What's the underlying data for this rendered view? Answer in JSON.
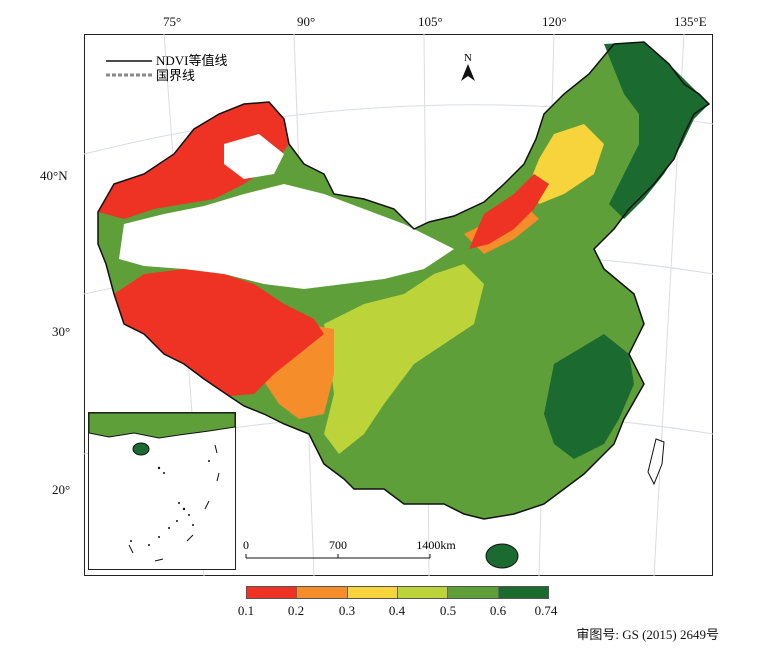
{
  "map": {
    "lon_ticks": [
      "75°",
      "90°",
      "105°",
      "120°",
      "135°E"
    ],
    "lat_ticks": [
      "40°N",
      "30°",
      "20°"
    ],
    "north_label": "N",
    "legend": {
      "isoline": "NDVI等值线",
      "border": "国界线"
    },
    "scalebar": {
      "ticks": [
        "0",
        "700",
        "1400km"
      ]
    },
    "colorbar": {
      "ticks": [
        "0.1",
        "0.2",
        "0.3",
        "0.4",
        "0.5",
        "0.6",
        "0.74"
      ],
      "colors": [
        "#ee3224",
        "#f58d2a",
        "#f7d43c",
        "#bcd43a",
        "#5f9f3a",
        "#1b6b31"
      ]
    },
    "approval_number": "审图号: GS (2015) 2649号"
  }
}
